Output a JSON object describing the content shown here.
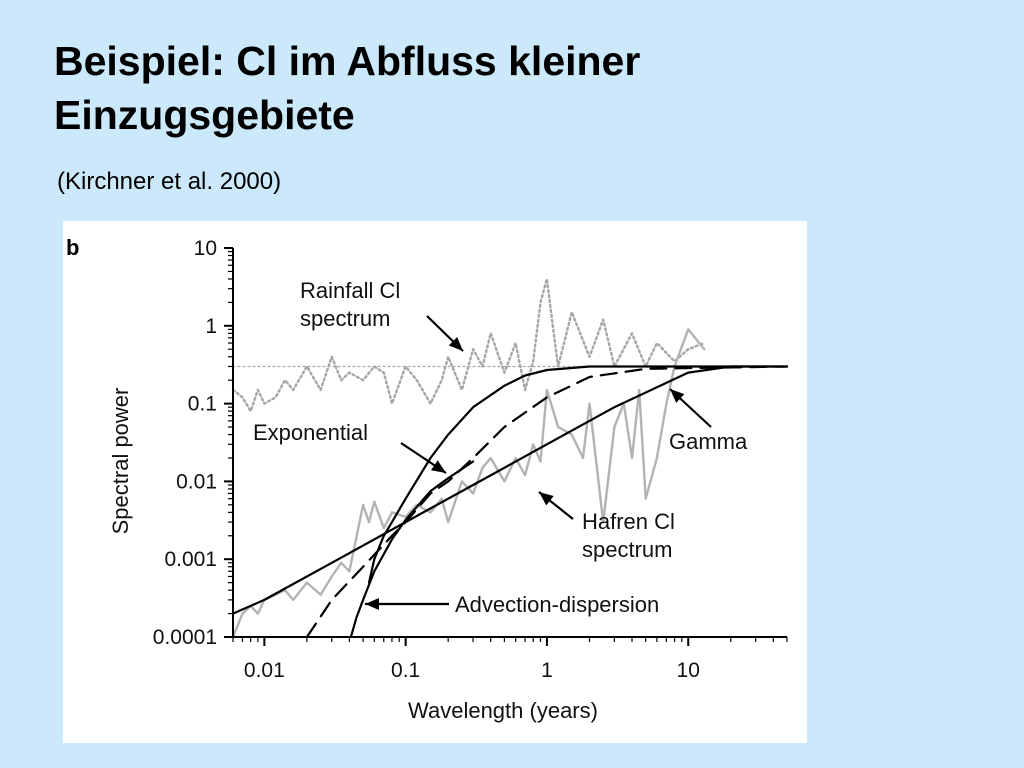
{
  "slide": {
    "title_line1": "Beispiel: Cl im Abfluss kleiner",
    "title_line2": "Einzugsgebiete",
    "citation": "(Kirchner et al. 2000)"
  },
  "colors": {
    "background": "#cce8fb",
    "panel": "#ffffff",
    "model_curves": "#000000",
    "hafren_spectrum": "#b3b3b3",
    "rainfall_spectrum": "#a6a6a6"
  },
  "chart_data": {
    "type": "line",
    "panel_label": "b",
    "title": "",
    "xlabel": "Wavelength (years)",
    "ylabel": "Spectral power",
    "x_scale": "log",
    "y_scale": "log",
    "xlim": [
      0.006,
      50
    ],
    "ylim": [
      0.0001,
      10
    ],
    "x_ticks": [
      0.01,
      0.1,
      1,
      10
    ],
    "x_tick_labels": [
      "0.01",
      "0.1",
      "1",
      "10"
    ],
    "y_ticks": [
      0.0001,
      0.001,
      0.01,
      0.1,
      1,
      10
    ],
    "y_tick_labels": [
      "0.0001",
      "0.001",
      "0.01",
      "0.1",
      "1",
      "10"
    ],
    "legend": "none (curves labelled by annotations)",
    "series": [
      {
        "style": "solid black",
        "x": [
          0.006,
          0.01,
          0.03,
          0.1,
          0.3,
          1,
          3,
          10,
          20,
          50
        ],
        "y": [
          0.0002,
          0.0003,
          0.0009,
          0.003,
          0.009,
          0.03,
          0.09,
          0.25,
          0.3,
          0.3
        ]
      },
      {
        "style": "solid black",
        "x": [
          0.055,
          0.06,
          0.07,
          0.08,
          0.1,
          0.15,
          0.2,
          0.3,
          0.5,
          0.7,
          1,
          2,
          5,
          50
        ],
        "y": [
          0.0005,
          0.001,
          0.002,
          0.003,
          0.006,
          0.02,
          0.04,
          0.09,
          0.17,
          0.23,
          0.27,
          0.3,
          0.3,
          0.3
        ]
      },
      {
        "style": "dashed black",
        "x": [
          0.02,
          0.03,
          0.05,
          0.08,
          0.1,
          0.15,
          0.2,
          0.3,
          0.5,
          1,
          2,
          5,
          50
        ],
        "y": [
          0.0001,
          0.0003,
          0.0008,
          0.002,
          0.003,
          0.007,
          0.01,
          0.02,
          0.05,
          0.12,
          0.22,
          0.28,
          0.3
        ]
      },
      {
        "style": "solid black",
        "x": [
          0.041,
          0.045,
          0.05,
          0.06,
          0.08,
          0.1,
          0.15,
          0.2,
          0.3
        ],
        "y": [
          0.0001,
          0.00018,
          0.0003,
          0.0007,
          0.0018,
          0.0032,
          0.0075,
          0.011,
          0.018
        ]
      },
      {
        "style": "dotted gray",
        "x": [
          0.006,
          50
        ],
        "y": [
          0.3,
          0.3
        ]
      },
      {
        "style": "solid light gray",
        "x": [
          0.006,
          0.007,
          0.008,
          0.009,
          0.01,
          0.012,
          0.014,
          0.016,
          0.02,
          0.025,
          0.03,
          0.035,
          0.04,
          0.05,
          0.055,
          0.06,
          0.07,
          0.08,
          0.1,
          0.12,
          0.15,
          0.18,
          0.2,
          0.25,
          0.3,
          0.35,
          0.4,
          0.5,
          0.6,
          0.7,
          0.8,
          0.9,
          1.0,
          1.2,
          1.5,
          1.8,
          2,
          2.5,
          3,
          3.5,
          4,
          4.5,
          5,
          6,
          7,
          8,
          10,
          13
        ],
        "y": [
          0.0001,
          0.0002,
          0.00025,
          0.0002,
          0.0003,
          0.00035,
          0.0004,
          0.0003,
          0.0005,
          0.00035,
          0.0006,
          0.0009,
          0.0007,
          0.005,
          0.003,
          0.0055,
          0.0025,
          0.004,
          0.0035,
          0.005,
          0.004,
          0.006,
          0.003,
          0.01,
          0.007,
          0.015,
          0.02,
          0.01,
          0.02,
          0.012,
          0.03,
          0.018,
          0.15,
          0.05,
          0.04,
          0.02,
          0.1,
          0.003,
          0.05,
          0.1,
          0.02,
          0.15,
          0.006,
          0.02,
          0.1,
          0.3,
          0.9,
          0.5
        ]
      },
      {
        "style": "dotted gray",
        "x": [
          0.006,
          0.007,
          0.008,
          0.009,
          0.01,
          0.012,
          0.014,
          0.016,
          0.02,
          0.025,
          0.03,
          0.035,
          0.04,
          0.05,
          0.06,
          0.07,
          0.08,
          0.1,
          0.12,
          0.15,
          0.18,
          0.2,
          0.25,
          0.3,
          0.35,
          0.4,
          0.5,
          0.6,
          0.7,
          0.8,
          0.9,
          1.0,
          1.1,
          1.2,
          1.5,
          2,
          2.5,
          3,
          4,
          5,
          6,
          8,
          10,
          13
        ],
        "y": [
          0.15,
          0.12,
          0.08,
          0.15,
          0.1,
          0.12,
          0.2,
          0.15,
          0.3,
          0.15,
          0.4,
          0.2,
          0.25,
          0.2,
          0.3,
          0.25,
          0.1,
          0.3,
          0.2,
          0.1,
          0.2,
          0.4,
          0.15,
          0.5,
          0.3,
          0.8,
          0.25,
          0.6,
          0.15,
          0.35,
          2.0,
          4.0,
          1.0,
          0.3,
          1.5,
          0.4,
          1.2,
          0.3,
          0.8,
          0.3,
          0.6,
          0.35,
          0.5,
          0.6
        ]
      }
    ],
    "annotations": [
      {
        "lines": [
          "Rainfall Cl",
          "spectrum"
        ]
      },
      {
        "lines": [
          "Exponential"
        ]
      },
      {
        "lines": [
          "Gamma"
        ]
      },
      {
        "lines": [
          "Hafren Cl",
          "spectrum"
        ]
      },
      {
        "lines": [
          "Advection-dispersion"
        ]
      }
    ]
  }
}
